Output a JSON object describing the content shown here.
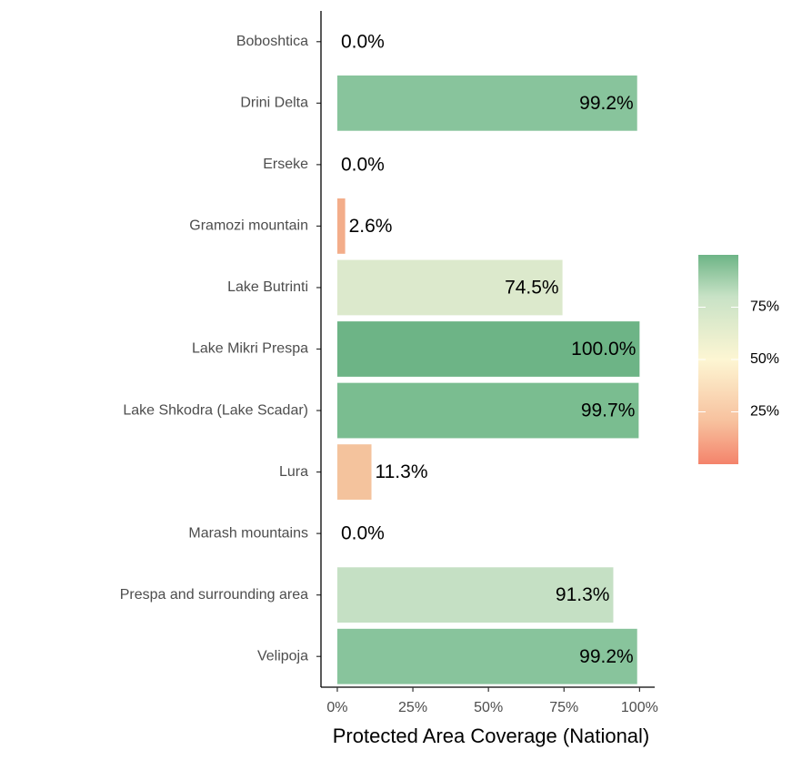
{
  "chart_data": {
    "type": "bar",
    "orientation": "horizontal",
    "categories": [
      "Boboshtica",
      "Drini Delta",
      "Erseke",
      "Gramozi mountain",
      "Lake Butrinti",
      "Lake Mikri Prespa",
      "Lake Shkodra (Lake Scadar)",
      "Lura",
      "Marash mountains",
      "Prespa and surrounding area",
      "Velipoja"
    ],
    "values": [
      0,
      99.2,
      0,
      2.6,
      74.5,
      100,
      99.7,
      11.3,
      0,
      91.3,
      99.2
    ],
    "value_labels": [
      "0.0%",
      "99.2%",
      "0.0%",
      "2.6%",
      "74.5%",
      "100.0%",
      "99.7%",
      "11.3%",
      "0.0%",
      "91.3%",
      "99.2%"
    ],
    "colors": [
      "#f4836b",
      "#88c49c",
      "#f4836b",
      "#f3ad8a",
      "#dce9cc",
      "#6db486",
      "#7abd90",
      "#f4c39d",
      "#f4836b",
      "#c5e0c4",
      "#88c49c"
    ],
    "xlabel": "Protected Area Coverage (National)",
    "xlim": [
      -5.4,
      105
    ],
    "xticks": [
      {
        "value": 0,
        "label": "0%"
      },
      {
        "value": 25,
        "label": "25%"
      },
      {
        "value": 50,
        "label": "50%"
      },
      {
        "value": 75,
        "label": "75%"
      },
      {
        "value": 100,
        "label": "100%"
      }
    ],
    "grid": false,
    "colorbar": {
      "lim": [
        0,
        100
      ],
      "ticks": [
        {
          "value": 25,
          "label": "25%"
        },
        {
          "value": 50,
          "label": "50%"
        },
        {
          "value": 75,
          "label": "75%"
        }
      ],
      "stops": [
        {
          "value": 0,
          "color": "#f4836b"
        },
        {
          "value": 20,
          "color": "#f7c09d"
        },
        {
          "value": 50,
          "color": "#fdf6d3"
        },
        {
          "value": 80,
          "color": "#c8e2c6"
        },
        {
          "value": 100,
          "color": "#6db486"
        }
      ]
    }
  }
}
